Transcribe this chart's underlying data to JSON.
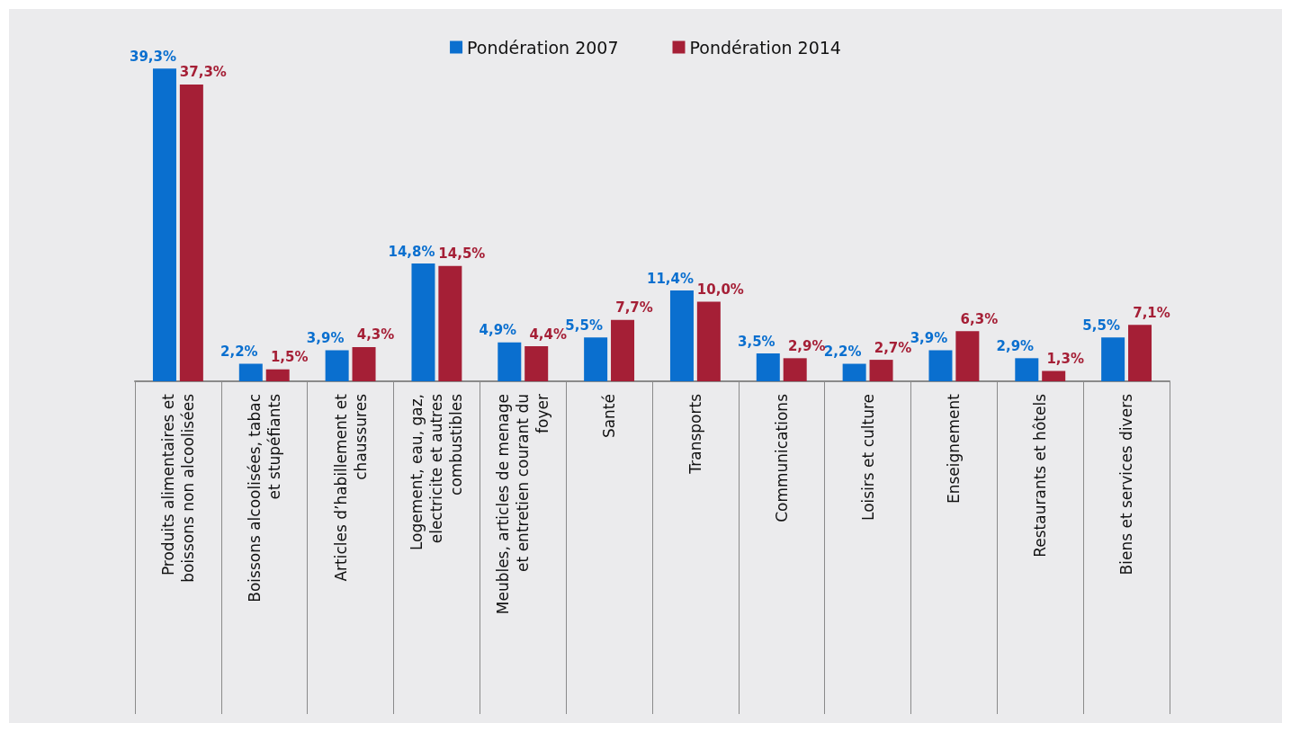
{
  "chart_data": {
    "type": "bar",
    "categories": [
      "Produits alimentaires et boissons non alcoolisées",
      "Boissons alcoolisées, tabac et stupéfiants",
      "Articles d’habillement et chaussures",
      "Logement, eau, gaz, electricite et autres combustibles",
      "Meubles, articles de menage et entretien courant du foyer",
      "Santé",
      "Transports",
      "Communications",
      "Loisirs et culture",
      "Enseignement",
      "Restaurants et hôtels",
      "Biens et services divers"
    ],
    "series": [
      {
        "name": "Pondération 2007",
        "color": "#0a6fcf",
        "values": [
          39.3,
          2.2,
          3.9,
          14.8,
          4.9,
          5.5,
          11.4,
          3.5,
          2.2,
          3.9,
          2.9,
          5.5
        ],
        "value_labels": [
          "39,3%",
          "2,2%",
          "3,9%",
          "14,8%",
          "4,9%",
          "5,5%",
          "11,4%",
          "3,5%",
          "2,2%",
          "3,9%",
          "2,9%",
          "5,5%"
        ]
      },
      {
        "name": "Pondération 2014",
        "color": "#a51f36",
        "values": [
          37.3,
          1.5,
          4.3,
          14.5,
          4.4,
          7.7,
          10.0,
          2.9,
          2.7,
          6.3,
          1.3,
          7.1
        ],
        "value_labels": [
          "37,3%",
          "1,5%",
          "4,3%",
          "14,5%",
          "4,4%",
          "7,7%",
          "10,0%",
          "2,9%",
          "2,7%",
          "6,3%",
          "1,3%",
          "7,1%"
        ]
      }
    ],
    "legend": "top"
  }
}
